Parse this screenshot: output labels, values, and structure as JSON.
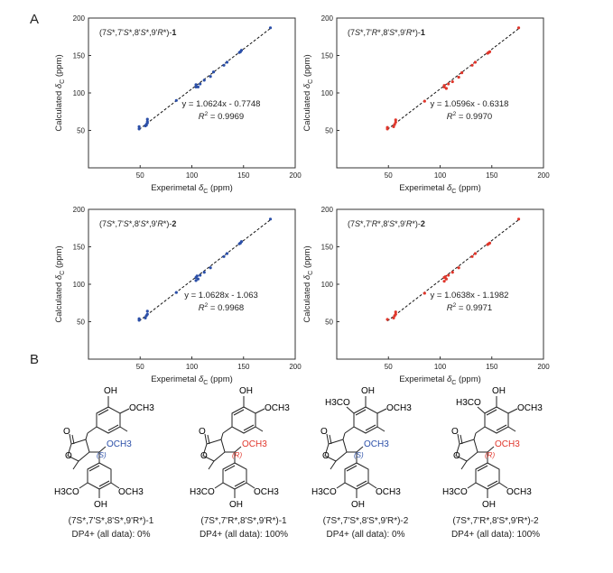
{
  "panels": {
    "a": "A",
    "b": "B"
  },
  "colors": {
    "blue": "#2b4fa8",
    "red": "#e0362b",
    "fit": "#111111"
  },
  "chart_data": [
    {
      "type": "scatter",
      "label": "(7S*,7'S*,8'S*,9'R*)-1",
      "xlabel": "Experimetal δC (ppm)",
      "ylabel": "Calculated δC (ppm)",
      "xlim": [
        0,
        200
      ],
      "ylim": [
        0,
        200
      ],
      "xticks": [
        50,
        100,
        150,
        200
      ],
      "yticks": [
        50,
        100,
        150,
        200
      ],
      "equation": "y = 1.0624x - 0.7748",
      "r2": "R2 = 0.9969",
      "slope": 1.0624,
      "intercept": -0.7748,
      "color": "#2b4fa8",
      "x": [
        49,
        49,
        55,
        56,
        56,
        57,
        57,
        57,
        85,
        104,
        104,
        106,
        108,
        112,
        118,
        121,
        131,
        134,
        146,
        147,
        148,
        176
      ],
      "y": [
        55,
        52,
        56,
        57,
        58,
        60,
        62,
        65,
        90,
        108,
        111,
        108,
        112,
        117,
        122,
        128,
        137,
        141,
        154,
        155,
        157,
        187
      ]
    },
    {
      "type": "scatter",
      "label": "(7S*,7'R*,8'S*,9'R*)-1",
      "xlabel": "Experimetal δC (ppm)",
      "ylabel": "Calculated δC (ppm)",
      "xlim": [
        0,
        200
      ],
      "ylim": [
        0,
        200
      ],
      "xticks": [
        50,
        100,
        150,
        200
      ],
      "yticks": [
        50,
        100,
        150,
        200
      ],
      "equation": "y = 1.0596x - 0.6318",
      "r2": "R2 = 0.9970",
      "slope": 1.0596,
      "intercept": -0.6318,
      "color": "#e0362b",
      "x": [
        49,
        49,
        55,
        56,
        57,
        57,
        85,
        104,
        104,
        106,
        108,
        112,
        118,
        121,
        131,
        134,
        146,
        147,
        148,
        176
      ],
      "y": [
        54,
        52,
        55,
        58,
        61,
        64,
        89,
        108,
        110,
        106,
        112,
        115,
        121,
        127,
        137,
        141,
        153,
        154,
        155,
        187
      ]
    },
    {
      "type": "scatter",
      "label": "(7S*,7'S*,8'S*,9'R*)-2",
      "xlabel": "Experimetal δC (ppm)",
      "ylabel": "Calculated δC (ppm)",
      "xlim": [
        0,
        200
      ],
      "ylim": [
        0,
        200
      ],
      "xticks": [
        50,
        100,
        150,
        200
      ],
      "yticks": [
        50,
        100,
        150,
        200
      ],
      "equation": "y = 1.0628x - 1.063",
      "r2": "R2 = 0.9968",
      "slope": 1.0628,
      "intercept": -1.063,
      "color": "#2b4fa8",
      "x": [
        49,
        49,
        55,
        56,
        57,
        57,
        85,
        104,
        104,
        105,
        106,
        108,
        112,
        118,
        131,
        134,
        146,
        147,
        148,
        176
      ],
      "y": [
        54,
        52,
        55,
        58,
        60,
        64,
        89,
        105,
        109,
        111,
        107,
        112,
        116,
        122,
        137,
        141,
        154,
        155,
        157,
        187
      ]
    },
    {
      "type": "scatter",
      "label": "(7S*,7'R*,8'S*,9'R*)-2",
      "xlabel": "Experimetal δC (ppm)",
      "ylabel": "Calculated δC (ppm)",
      "xlim": [
        0,
        200
      ],
      "ylim": [
        0,
        200
      ],
      "xticks": [
        50,
        100,
        150,
        200
      ],
      "yticks": [
        50,
        100,
        150,
        200
      ],
      "equation": "y = 1.0638x - 1.1982",
      "r2": "R2 = 0.9971",
      "slope": 1.0638,
      "intercept": -1.1982,
      "color": "#e0362b",
      "x": [
        49,
        55,
        56,
        57,
        57,
        85,
        104,
        104,
        105,
        106,
        108,
        112,
        118,
        131,
        134,
        146,
        147,
        148,
        176
      ],
      "y": [
        53,
        55,
        58,
        60,
        63,
        88,
        104,
        109,
        110,
        107,
        112,
        116,
        122,
        137,
        141,
        153,
        154,
        155,
        187
      ]
    }
  ],
  "structures": [
    {
      "id": "(7S*,7'S*,8'S*,9'R*)-1",
      "dp4": "DP4+ (all data): 0%",
      "config": "(S)",
      "methoxy": "OCH3",
      "accent": "#2b4fa8",
      "labels": {
        "oh_top": "OH",
        "och3_top": "OCH3",
        "h3co_bot": "H3CO",
        "och3_bot": "OCH3",
        "oh_bot": "OH",
        "carbonyl_o": "O",
        "ring_o": "O"
      }
    },
    {
      "id": "(7S*,7'R*,8'S*,9'R*)-1",
      "dp4": "DP4+ (all data): 100%",
      "config": "(R)",
      "methoxy": "OCH3",
      "accent": "#e0362b",
      "labels": {
        "oh_top": "OH",
        "och3_top": "OCH3",
        "h3co_bot": "H3CO",
        "och3_bot": "OCH3",
        "oh_bot": "OH",
        "carbonyl_o": "O",
        "ring_o": "O"
      }
    },
    {
      "id": "(7S*,7'S*,8'S*,9'R*)-2",
      "dp4": "DP4+ (all data): 0%",
      "config": "(S)",
      "methoxy": "OCH3",
      "accent": "#2b4fa8",
      "labels": {
        "h3co_top": "H3CO",
        "oh_top": "OH",
        "och3_top": "OCH3",
        "h3co_bot": "H3CO",
        "och3_bot": "OCH3",
        "oh_bot": "OH",
        "carbonyl_o": "O",
        "ring_o": "O"
      }
    },
    {
      "id": "(7S*,7'R*,8'S*,9'R*)-2",
      "dp4": "DP4+ (all data): 100%",
      "config": "(R)",
      "methoxy": "OCH3",
      "accent": "#e0362b",
      "labels": {
        "h3co_top": "H3CO",
        "oh_top": "OH",
        "och3_top": "OCH3",
        "h3co_bot": "H3CO",
        "och3_bot": "OCH3",
        "oh_bot": "OH",
        "carbonyl_o": "O",
        "ring_o": "O"
      }
    }
  ]
}
